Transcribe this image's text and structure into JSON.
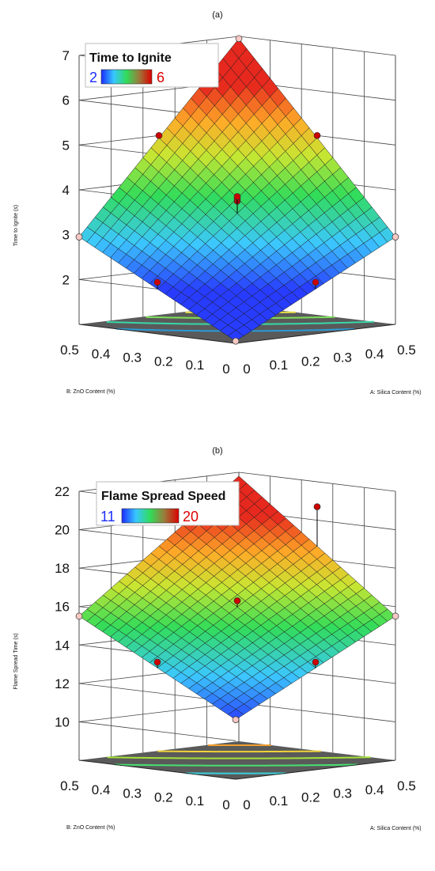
{
  "colors": {
    "floor": "#5a5a5a",
    "grid": "#444444",
    "mesh": "#1a1a1a",
    "design_point": "#cc0000",
    "boundary_point": "#f6c8c4",
    "legend_low": "#1a2cff",
    "legend_high": "#dd0000"
  },
  "chart_data": [
    {
      "type": "surface3d",
      "panel_label": "(a)",
      "legend": {
        "title": "Time to Ignite",
        "low": "2",
        "high": "6"
      },
      "xlabel": "A: Silica Content (%)",
      "ylabel": "B: ZnO Content (%)",
      "zlabel": "Time to Ignite (s)",
      "x_ticks": [
        "0",
        "0.1",
        "0.2",
        "0.3",
        "0.4",
        "0.5"
      ],
      "y_ticks": [
        "0",
        "0.1",
        "0.2",
        "0.3",
        "0.4",
        "0.5"
      ],
      "z_ticks": [
        "2",
        "3",
        "4",
        "5",
        "6",
        "7"
      ],
      "xlim": [
        0,
        0.5
      ],
      "ylim": [
        0,
        0.5
      ],
      "zlim": [
        1,
        7
      ],
      "color_range": [
        2,
        6
      ],
      "surface": {
        "corners": {
          "a0_b0": 1.05,
          "a1_b0": 2.95,
          "a0_b1": 2.95,
          "a1_b1": 6.95
        },
        "grid_n": 20
      },
      "design_points": [
        {
          "a": 0.5,
          "b": 0.5,
          "z": 6.95
        },
        {
          "a": 0.0,
          "b": 0.5,
          "z": 2.95
        },
        {
          "a": 0.5,
          "b": 0.0,
          "z": 2.95
        },
        {
          "a": 0.0,
          "b": 0.0,
          "z": 1.05
        },
        {
          "a": 0.25,
          "b": 0.5,
          "z": 5.0
        },
        {
          "a": 0.5,
          "b": 0.25,
          "z": 5.0
        },
        {
          "a": 0.0,
          "b": 0.25,
          "z": 2.15
        },
        {
          "a": 0.25,
          "b": 0.0,
          "z": 2.15
        },
        {
          "a": 0.25,
          "b": 0.25,
          "z": 3.75
        },
        {
          "a": 0.25,
          "b": 0.25,
          "z": 3.8
        },
        {
          "a": 0.25,
          "b": 0.25,
          "z": 3.85
        }
      ],
      "contours": [
        {
          "level": 2.5,
          "color": "#2a9ad6"
        },
        {
          "level": 3.5,
          "color": "#38d8a8"
        },
        {
          "level": 4.5,
          "color": "#7ee05a"
        },
        {
          "level": 5.5,
          "color": "#e6e24a"
        }
      ]
    },
    {
      "type": "surface3d",
      "panel_label": "(b)",
      "legend": {
        "title": "Flame Spread Speed",
        "low": "11",
        "high": "20"
      },
      "xlabel": "A: Silica Content (%)",
      "ylabel": "B: ZnO Content (%)",
      "zlabel": "Flame Spread Time (s)",
      "x_ticks": [
        "0",
        "0.1",
        "0.2",
        "0.3",
        "0.4",
        "0.5"
      ],
      "y_ticks": [
        "0",
        "0.1",
        "0.2",
        "0.3",
        "0.4",
        "0.5"
      ],
      "z_ticks": [
        "10",
        "12",
        "14",
        "16",
        "18",
        "20",
        "22"
      ],
      "xlim": [
        0,
        0.5
      ],
      "ylim": [
        0,
        0.5
      ],
      "zlim": [
        8,
        22
      ],
      "color_range": [
        11,
        20
      ],
      "surface": {
        "corners": {
          "a0_b0": 11.1,
          "a1_b0": 15.5,
          "a0_b1": 15.5,
          "a1_b1": 21.8
        },
        "grid_n": 20
      },
      "design_points": [
        {
          "a": 0.0,
          "b": 0.5,
          "z": 15.5
        },
        {
          "a": 0.5,
          "b": 0.0,
          "z": 15.5
        },
        {
          "a": 0.0,
          "b": 0.0,
          "z": 11.1
        },
        {
          "a": 0.5,
          "b": 0.25,
          "z": 20.7
        },
        {
          "a": 0.25,
          "b": 0.0,
          "z": 13.6
        },
        {
          "a": 0.0,
          "b": 0.25,
          "z": 13.6
        },
        {
          "a": 0.25,
          "b": 0.25,
          "z": 16.3
        }
      ],
      "contours": [
        {
          "level": 12.5,
          "color": "#38d0d8"
        },
        {
          "level": 14.5,
          "color": "#48e070"
        },
        {
          "level": 16.5,
          "color": "#a6e23a"
        },
        {
          "level": 18.5,
          "color": "#f0d23a"
        },
        {
          "level": 20.5,
          "color": "#f0a030"
        }
      ]
    }
  ]
}
